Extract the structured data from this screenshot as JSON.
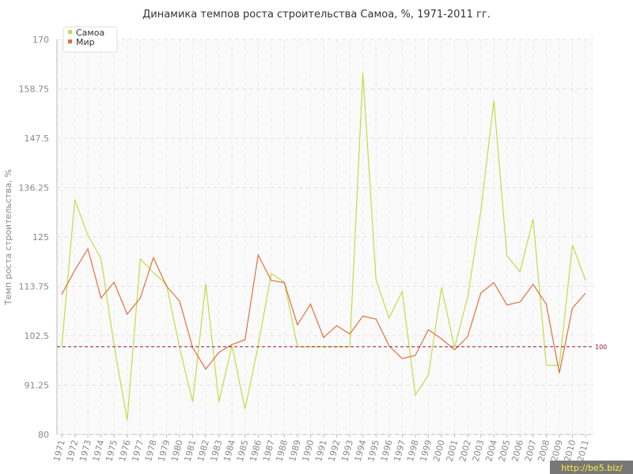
{
  "chart_data": {
    "type": "line",
    "title": "Динамика темпов роста строительства Самоа, %, 1971-2011 гг.",
    "y_label": "Темп роста строительства, %",
    "categories": [
      "1971",
      "1972",
      "1973",
      "1974",
      "1975",
      "1976",
      "1977",
      "1978",
      "1979",
      "1980",
      "1981",
      "1982",
      "1983",
      "1984",
      "1985",
      "1986",
      "1987",
      "1988",
      "1989",
      "1990",
      "1991",
      "1992",
      "1993",
      "1994",
      "1995",
      "1996",
      "1997",
      "1998",
      "1999",
      "2000",
      "2001",
      "2002",
      "2003",
      "2004",
      "2005",
      "2006",
      "2007",
      "2008",
      "2009",
      "2010",
      "2011"
    ],
    "series": [
      {
        "name": "Самоа",
        "color": "#c2dc4a",
        "values": [
          100,
          133.5,
          125.4,
          120.1,
          100.3,
          83.2,
          120,
          116.9,
          114.2,
          99.8,
          87.4,
          114.4,
          87.4,
          100.3,
          85.8,
          100.2,
          116.7,
          114.7,
          100,
          100,
          100,
          100,
          100,
          162.4,
          115.3,
          106.5,
          112.6,
          89,
          93.5,
          113.5,
          99.8,
          111.3,
          130.8,
          156.1,
          120.7,
          117.1,
          129.1,
          95.8,
          95.7,
          123.2,
          115.1
        ]
      },
      {
        "name": "Мир",
        "color": "#e07040",
        "values": [
          111.9,
          117.4,
          122.3,
          111.1,
          114.7,
          107.4,
          111.1,
          120.3,
          113.8,
          110.4,
          99.8,
          94.9,
          98.7,
          100.5,
          101.6,
          120.9,
          115.1,
          114.6,
          105,
          109.7,
          102.1,
          104.8,
          102.9,
          107,
          106.3,
          100.2,
          97.3,
          98,
          103.9,
          101.8,
          99.3,
          102.3,
          112.2,
          114.6,
          109.5,
          110.2,
          114.2,
          109.7,
          94,
          108.8,
          112.2
        ]
      }
    ],
    "ylim": [
      80,
      170
    ],
    "yticks": [
      80,
      91.25,
      102.5,
      113.75,
      125,
      136.25,
      147.5,
      158.75,
      170
    ],
    "reference_line": 100,
    "reference_color": "#8b1a2a",
    "grid": true,
    "legend": "top-left",
    "watermark": "http://be5.biz/"
  }
}
